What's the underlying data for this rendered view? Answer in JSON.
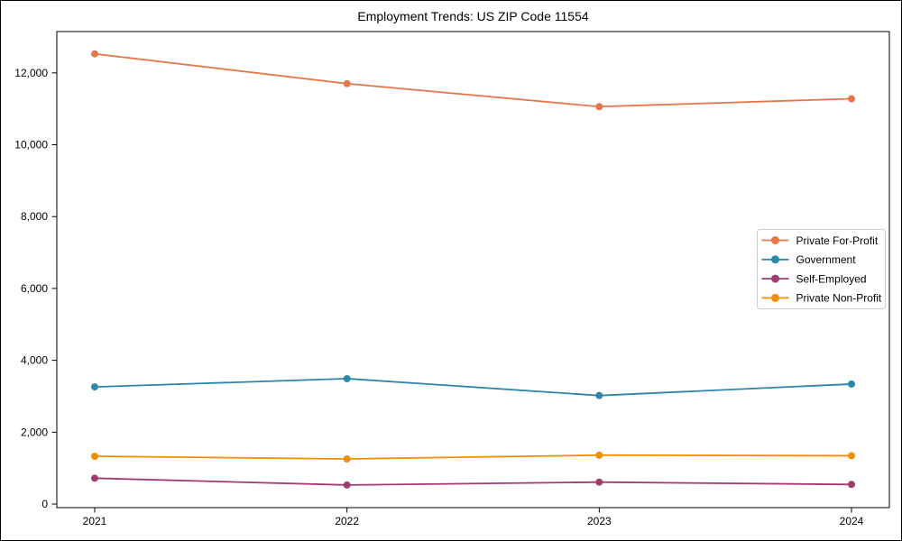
{
  "figure": {
    "title": "Employment Trends: US ZIP Code 11554"
  },
  "chart_data": {
    "type": "line",
    "title": "Employment Trends: US ZIP Code 11554",
    "categories": [
      "2021",
      "2022",
      "2023",
      "2024"
    ],
    "series": [
      {
        "name": "Private For-Profit",
        "color": "#E8764B",
        "values": [
          12530,
          11700,
          11060,
          11280
        ]
      },
      {
        "name": "Government",
        "color": "#2E86AB",
        "values": [
          3260,
          3490,
          3020,
          3340
        ]
      },
      {
        "name": "Self-Employed",
        "color": "#A23B72",
        "values": [
          720,
          530,
          610,
          545
        ]
      },
      {
        "name": "Private Non-Profit",
        "color": "#F18F01",
        "values": [
          1330,
          1255,
          1360,
          1345
        ]
      }
    ],
    "xlabel": "",
    "ylabel": "",
    "ylim": [
      0,
      13100
    ],
    "yticks": [
      0,
      2000,
      4000,
      6000,
      8000,
      10000,
      12000
    ],
    "ytick_labels": [
      "0",
      "2,000",
      "4,000",
      "6,000",
      "8,000",
      "10,000",
      "12,000"
    ],
    "grid": false,
    "legend_position": "center right",
    "marker": "circle",
    "axis_color": "#000000",
    "legend_border_color": "#cccccc",
    "background_color": "#ffffff"
  }
}
